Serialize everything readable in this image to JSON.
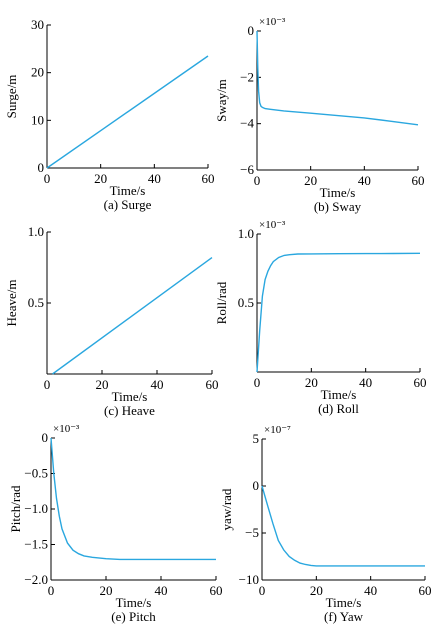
{
  "chart_data": [
    {
      "type": "line",
      "caption": "(a) Surge",
      "xlabel": "Time/s",
      "ylabel": "Surge/m",
      "exponent_label": "",
      "xlim": [
        0,
        60
      ],
      "ylim": [
        0,
        30
      ],
      "xticks": [
        "0",
        "20",
        "40",
        "60"
      ],
      "xtick_values": [
        0,
        20,
        40,
        60
      ],
      "yticks": [
        "0",
        "10",
        "20",
        "30"
      ],
      "ytick_values": [
        0,
        10,
        20,
        30
      ],
      "series_color": "#2aa7df",
      "x": [
        0,
        60
      ],
      "y": [
        0,
        23.5
      ]
    },
    {
      "type": "line",
      "caption": "(b) Sway",
      "xlabel": "Time/s",
      "ylabel": "Sway/m",
      "exponent_label": "×10⁻³",
      "xlim": [
        0,
        60
      ],
      "ylim": [
        -6,
        0
      ],
      "xticks": [
        "0",
        "20",
        "40",
        "60"
      ],
      "xtick_values": [
        0,
        20,
        40,
        60
      ],
      "yticks": [
        "0",
        "−2",
        "−4",
        "−6"
      ],
      "ytick_values": [
        0,
        -2,
        -4,
        -6
      ],
      "series_color": "#2aa7df",
      "x": [
        0,
        0.3,
        0.6,
        1,
        1.5,
        2,
        3,
        5,
        10,
        20,
        30,
        40,
        50,
        60
      ],
      "y": [
        0,
        -1.6,
        -2.6,
        -3.1,
        -3.25,
        -3.3,
        -3.35,
        -3.38,
        -3.45,
        -3.55,
        -3.65,
        -3.75,
        -3.9,
        -4.05
      ]
    },
    {
      "type": "line",
      "caption": "(c) Heave",
      "xlabel": "Time/s",
      "ylabel": "Heave/m",
      "exponent_label": "",
      "xlim": [
        0,
        60
      ],
      "ylim": [
        0,
        1.0
      ],
      "xticks": [
        "0",
        "20",
        "40",
        "60"
      ],
      "xtick_values": [
        0,
        20,
        40,
        60
      ],
      "yticks": [
        "0.5",
        "1.0"
      ],
      "ytick_values": [
        0.5,
        1.0
      ],
      "series_color": "#2aa7df",
      "x": [
        2,
        60
      ],
      "y": [
        0,
        0.82
      ]
    },
    {
      "type": "line",
      "caption": "(d) Roll",
      "xlabel": "Time/s",
      "ylabel": "Roll/rad",
      "exponent_label": "×10⁻³",
      "xlim": [
        0,
        60
      ],
      "ylim": [
        0,
        1.0
      ],
      "xticks": [
        "0",
        "20",
        "40",
        "60"
      ],
      "xtick_values": [
        0,
        20,
        40,
        60
      ],
      "yticks": [
        "0.5",
        "1.0"
      ],
      "ytick_values": [
        0.5,
        1.0
      ],
      "series_color": "#2aa7df",
      "x": [
        0,
        1,
        2,
        3,
        4,
        5,
        6,
        8,
        10,
        12,
        15,
        20,
        30,
        40,
        50,
        60
      ],
      "y": [
        0,
        0.3,
        0.55,
        0.67,
        0.73,
        0.77,
        0.8,
        0.83,
        0.845,
        0.85,
        0.855,
        0.856,
        0.857,
        0.858,
        0.859,
        0.86
      ]
    },
    {
      "type": "line",
      "caption": "(e) Pitch",
      "xlabel": "Time/s",
      "ylabel": "Pitch/rad",
      "exponent_label": "×10⁻³",
      "xlim": [
        0,
        60
      ],
      "ylim": [
        -2.0,
        0
      ],
      "xticks": [
        "0",
        "20",
        "40",
        "60"
      ],
      "xtick_values": [
        0,
        20,
        40,
        60
      ],
      "yticks": [
        "0",
        "−0.5",
        "−1.0",
        "−1.5",
        "−2.0"
      ],
      "ytick_values": [
        0,
        -0.5,
        -1.0,
        -1.5,
        -2.0
      ],
      "series_color": "#2aa7df",
      "x": [
        0,
        1,
        2,
        3,
        4,
        6,
        8,
        10,
        12,
        15,
        20,
        25,
        30,
        40,
        50,
        60
      ],
      "y": [
        0,
        -0.5,
        -0.85,
        -1.1,
        -1.28,
        -1.48,
        -1.58,
        -1.63,
        -1.66,
        -1.68,
        -1.7,
        -1.71,
        -1.71,
        -1.71,
        -1.71,
        -1.71
      ]
    },
    {
      "type": "line",
      "caption": "(f) Yaw",
      "xlabel": "Time/s",
      "ylabel": "yaw/rad",
      "exponent_label": "×10⁻⁷",
      "xlim": [
        0,
        60
      ],
      "ylim": [
        -10,
        5
      ],
      "xticks": [
        "0",
        "20",
        "40",
        "60"
      ],
      "xtick_values": [
        0,
        20,
        40,
        60
      ],
      "yticks": [
        "5",
        "0",
        "−5",
        "−10"
      ],
      "ytick_values": [
        5,
        0,
        -5,
        -10
      ],
      "series_color": "#2aa7df",
      "x": [
        0,
        2,
        4,
        6,
        8,
        10,
        12,
        14,
        16,
        18,
        20,
        30,
        40,
        50,
        60
      ],
      "y": [
        0,
        -2,
        -4,
        -5.8,
        -6.8,
        -7.5,
        -7.9,
        -8.2,
        -8.35,
        -8.45,
        -8.5,
        -8.5,
        -8.5,
        -8.5,
        -8.5
      ]
    }
  ]
}
